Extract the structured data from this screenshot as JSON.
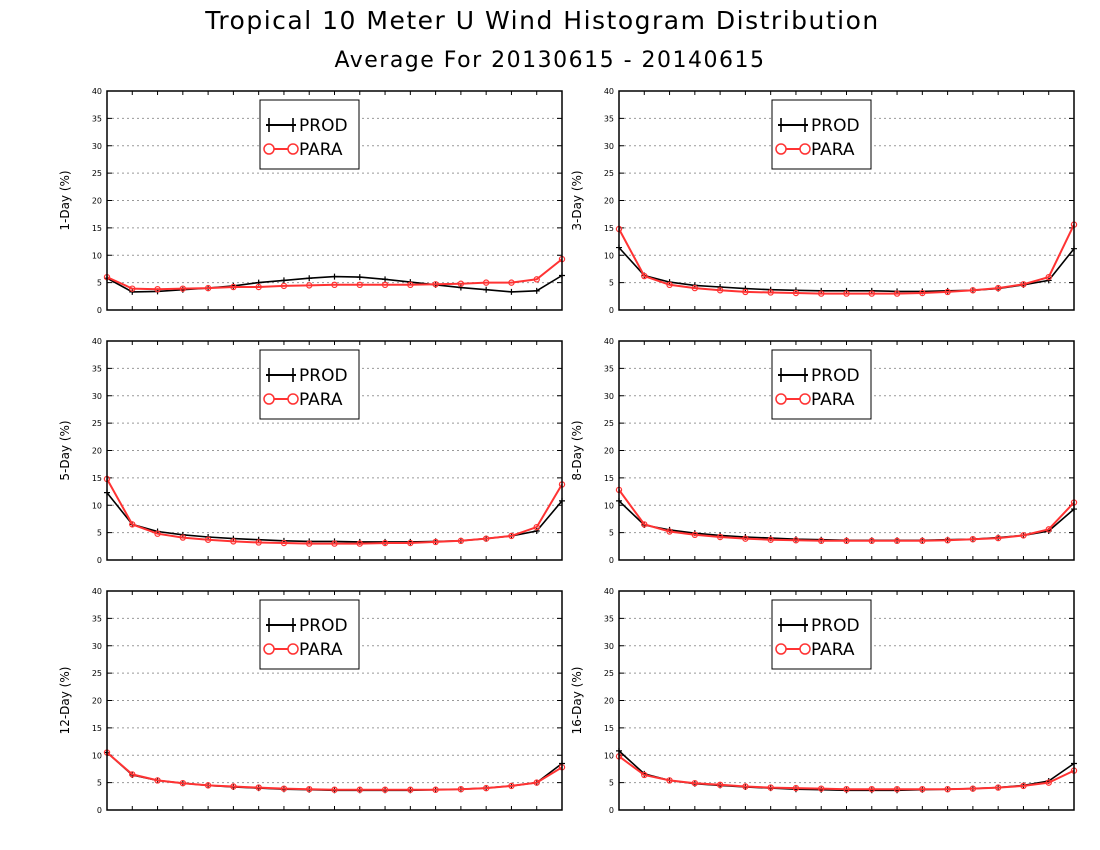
{
  "title": "Tropical 10 Meter U Wind Histogram Distribution",
  "subtitle": "Average For 20130615 - 20140615",
  "colors": {
    "prod": "#000000",
    "para": "#ff3333",
    "grid": "#999999"
  },
  "chart_data": [
    {
      "type": "line",
      "ylabel": "1-Day (%)",
      "ylim": [
        0,
        40
      ],
      "yticks": [
        0,
        5,
        10,
        15,
        20,
        25,
        30,
        35,
        40
      ],
      "grid": true,
      "legend_position": "top-center",
      "series": [
        {
          "name": "PROD",
          "values": [
            5.8,
            3.3,
            3.4,
            3.7,
            4.0,
            4.4,
            5.0,
            5.4,
            5.8,
            6.1,
            6.0,
            5.6,
            5.1,
            4.6,
            4.1,
            3.7,
            3.3,
            3.5,
            6.3
          ]
        },
        {
          "name": "PARA",
          "values": [
            6.0,
            3.9,
            3.8,
            3.9,
            4.0,
            4.2,
            4.2,
            4.4,
            4.5,
            4.6,
            4.6,
            4.6,
            4.6,
            4.7,
            4.8,
            5.0,
            5.0,
            5.6,
            9.3
          ]
        }
      ]
    },
    {
      "type": "line",
      "ylabel": "3-Day (%)",
      "ylim": [
        0,
        40
      ],
      "yticks": [
        0,
        5,
        10,
        15,
        20,
        25,
        30,
        35,
        40
      ],
      "grid": true,
      "legend_position": "top-center",
      "series": [
        {
          "name": "PROD",
          "values": [
            11.4,
            6.3,
            5.1,
            4.5,
            4.2,
            3.9,
            3.7,
            3.6,
            3.5,
            3.5,
            3.5,
            3.4,
            3.4,
            3.5,
            3.6,
            3.9,
            4.6,
            5.4,
            11.2
          ]
        },
        {
          "name": "PARA",
          "values": [
            14.8,
            6.2,
            4.6,
            4.0,
            3.6,
            3.3,
            3.2,
            3.1,
            3.0,
            3.0,
            3.0,
            3.0,
            3.1,
            3.3,
            3.6,
            4.0,
            4.7,
            6.0,
            15.6
          ]
        }
      ]
    },
    {
      "type": "line",
      "ylabel": "5-Day (%)",
      "ylim": [
        0,
        40
      ],
      "yticks": [
        0,
        5,
        10,
        15,
        20,
        25,
        30,
        35,
        40
      ],
      "grid": true,
      "legend_position": "top-center",
      "series": [
        {
          "name": "PROD",
          "values": [
            12.3,
            6.5,
            5.2,
            4.6,
            4.2,
            3.9,
            3.7,
            3.5,
            3.4,
            3.4,
            3.3,
            3.3,
            3.3,
            3.4,
            3.5,
            3.9,
            4.4,
            5.3,
            10.8
          ]
        },
        {
          "name": "PARA",
          "values": [
            14.8,
            6.5,
            4.8,
            4.1,
            3.7,
            3.4,
            3.2,
            3.1,
            3.0,
            3.0,
            3.0,
            3.1,
            3.1,
            3.3,
            3.5,
            3.9,
            4.4,
            6.0,
            13.8
          ]
        }
      ]
    },
    {
      "type": "line",
      "ylabel": "8-Day (%)",
      "ylim": [
        0,
        40
      ],
      "yticks": [
        0,
        5,
        10,
        15,
        20,
        25,
        30,
        35,
        40
      ],
      "grid": true,
      "legend_position": "top-center",
      "series": [
        {
          "name": "PROD",
          "values": [
            10.8,
            6.4,
            5.5,
            4.9,
            4.5,
            4.2,
            4.0,
            3.8,
            3.7,
            3.6,
            3.6,
            3.6,
            3.6,
            3.7,
            3.8,
            4.1,
            4.5,
            5.3,
            9.3
          ]
        },
        {
          "name": "PARA",
          "values": [
            12.8,
            6.5,
            5.2,
            4.6,
            4.2,
            3.9,
            3.7,
            3.6,
            3.5,
            3.5,
            3.5,
            3.5,
            3.5,
            3.6,
            3.8,
            4.0,
            4.5,
            5.6,
            10.5
          ]
        }
      ]
    },
    {
      "type": "line",
      "ylabel": "12-Day (%)",
      "ylim": [
        0,
        40
      ],
      "yticks": [
        0,
        5,
        10,
        15,
        20,
        25,
        30,
        35,
        40
      ],
      "grid": true,
      "legend_position": "top-center",
      "series": [
        {
          "name": "PROD",
          "values": [
            10.5,
            6.4,
            5.4,
            4.9,
            4.5,
            4.2,
            4.0,
            3.8,
            3.7,
            3.6,
            3.6,
            3.6,
            3.6,
            3.7,
            3.8,
            4.0,
            4.4,
            5.0,
            8.5
          ]
        },
        {
          "name": "PARA",
          "values": [
            10.5,
            6.5,
            5.4,
            4.9,
            4.5,
            4.3,
            4.1,
            3.9,
            3.8,
            3.7,
            3.7,
            3.7,
            3.7,
            3.7,
            3.8,
            4.0,
            4.4,
            5.0,
            7.8
          ]
        }
      ]
    },
    {
      "type": "line",
      "ylabel": "16-Day (%)",
      "ylim": [
        0,
        40
      ],
      "yticks": [
        0,
        5,
        10,
        15,
        20,
        25,
        30,
        35,
        40
      ],
      "grid": true,
      "legend_position": "top-center",
      "series": [
        {
          "name": "PROD",
          "values": [
            10.8,
            6.6,
            5.4,
            4.8,
            4.5,
            4.2,
            4.0,
            3.8,
            3.7,
            3.6,
            3.6,
            3.6,
            3.7,
            3.8,
            3.9,
            4.1,
            4.5,
            5.3,
            8.5
          ]
        },
        {
          "name": "PARA",
          "values": [
            9.8,
            6.4,
            5.4,
            4.9,
            4.6,
            4.3,
            4.1,
            4.0,
            3.9,
            3.8,
            3.8,
            3.8,
            3.8,
            3.8,
            3.9,
            4.1,
            4.4,
            5.0,
            7.2
          ]
        }
      ]
    }
  ]
}
